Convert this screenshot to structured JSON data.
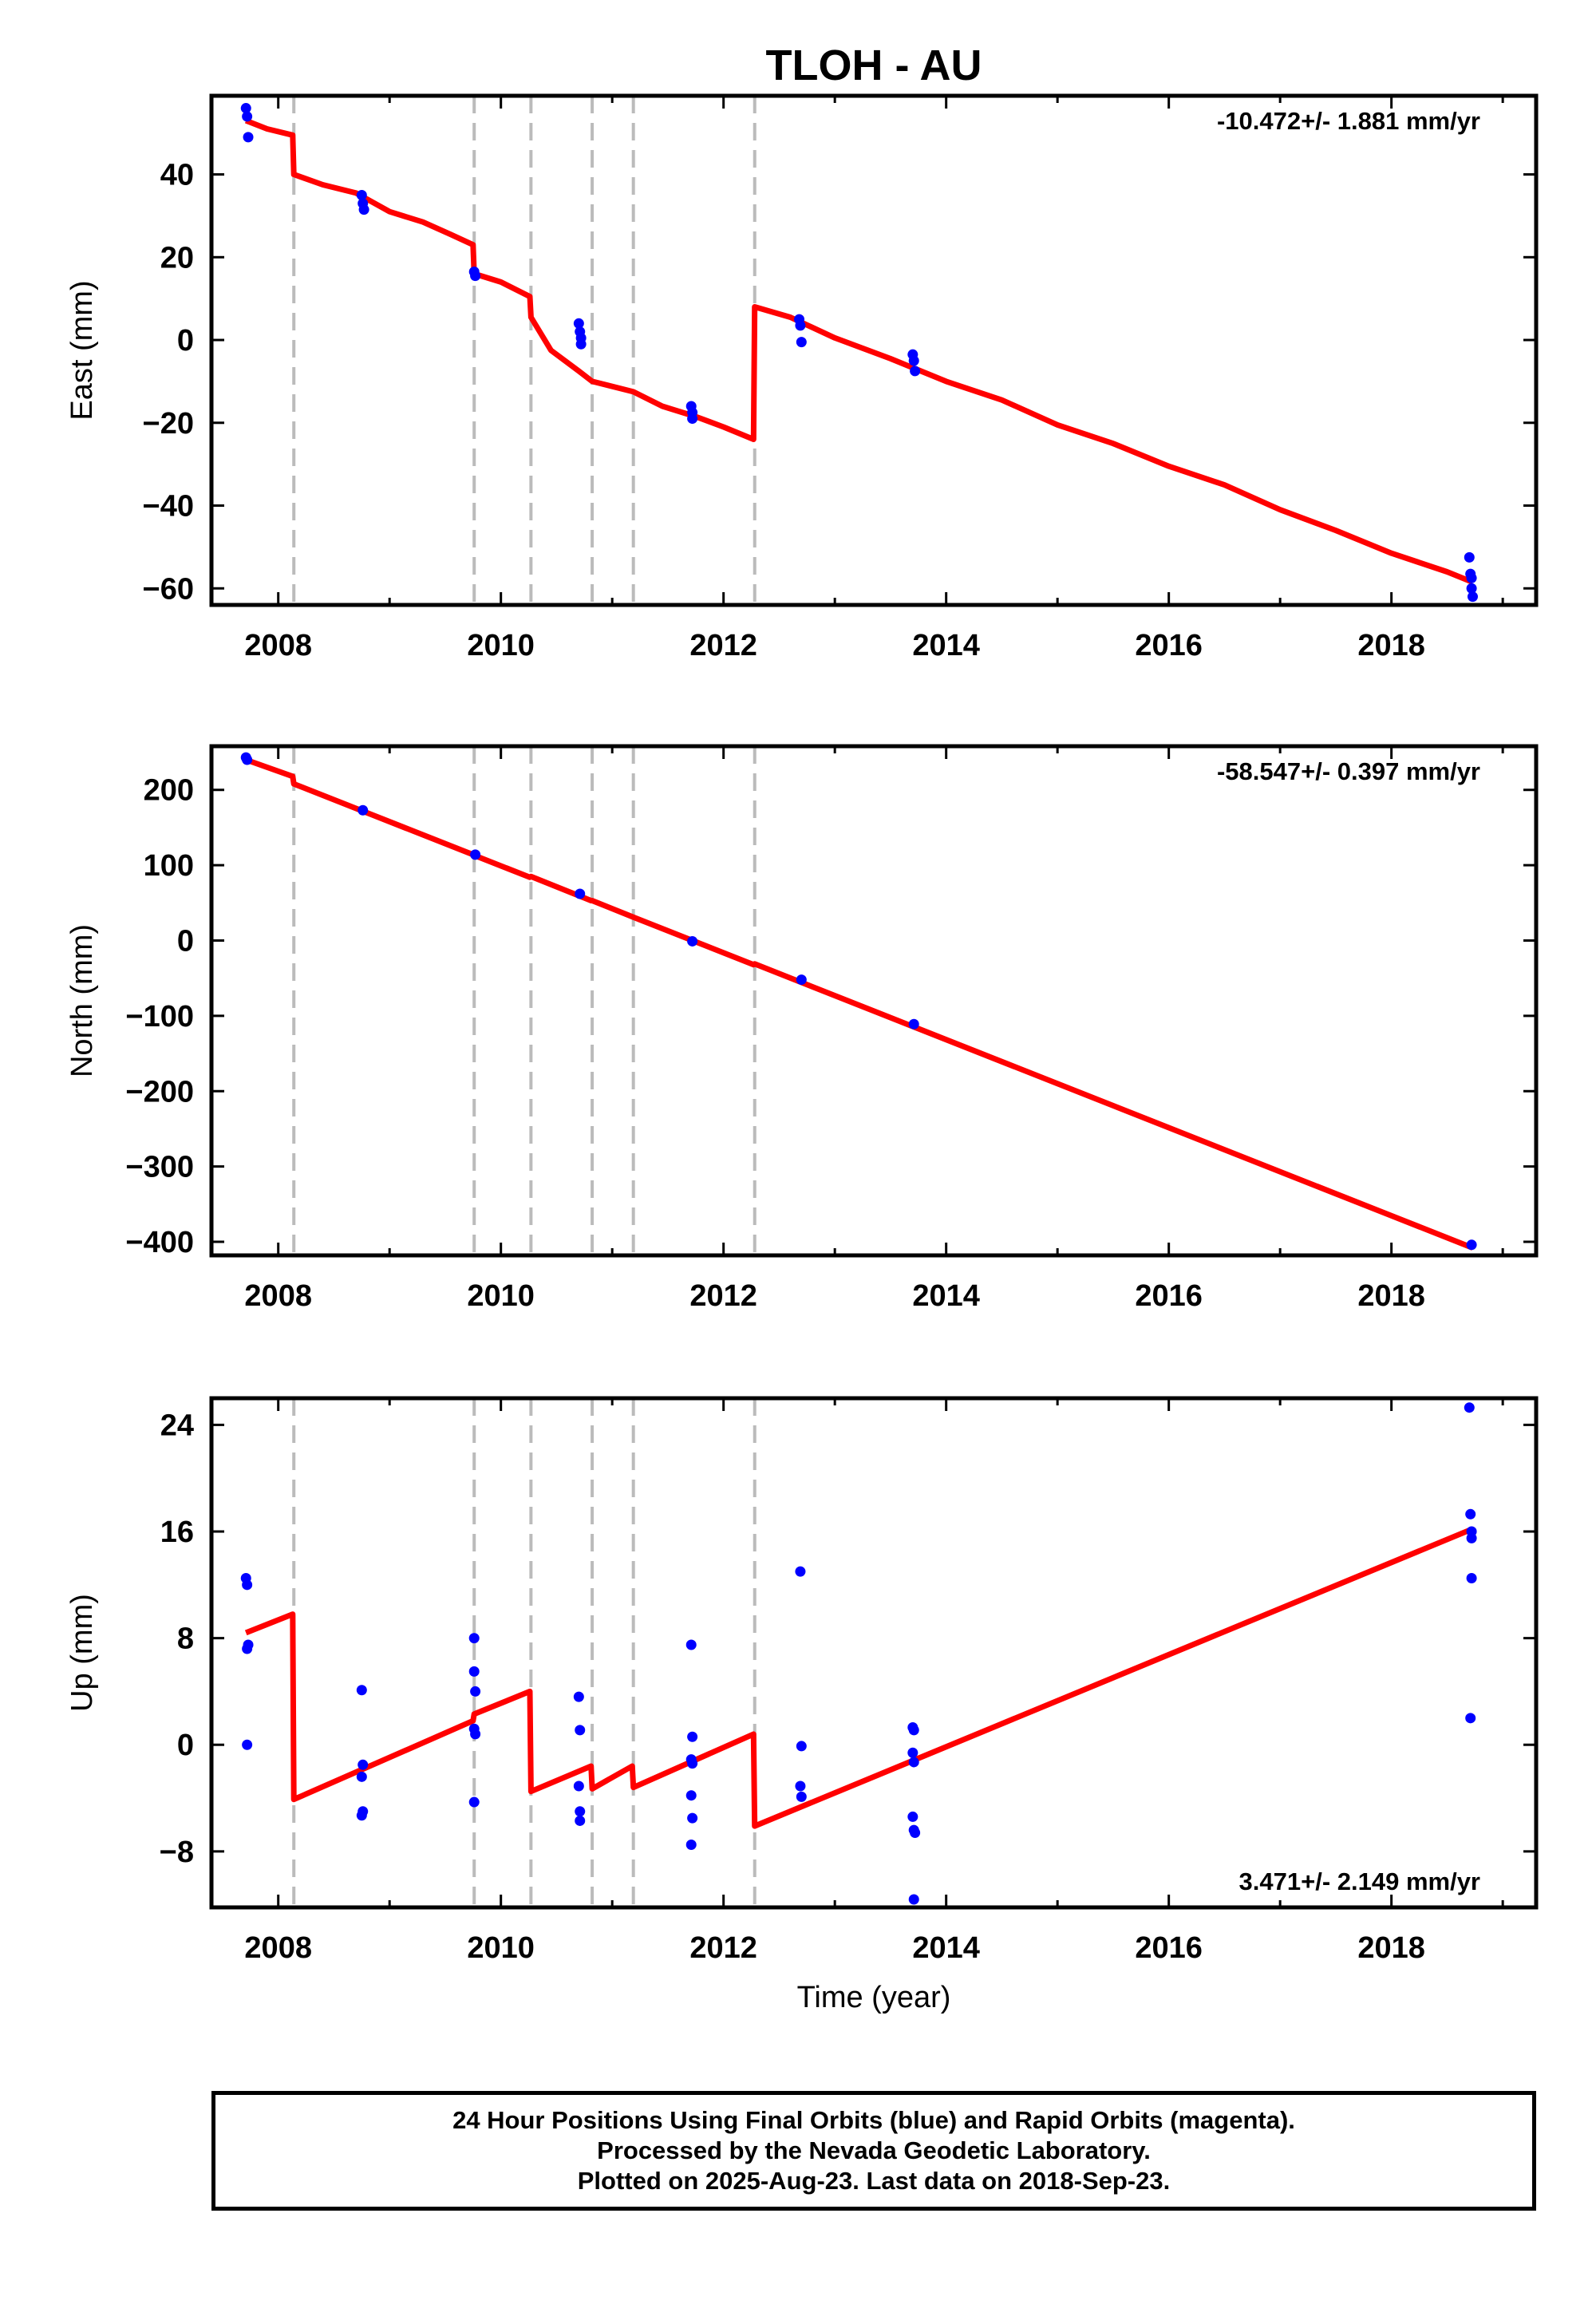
{
  "title": "TLOH - AU",
  "colors": {
    "model": "#ff0000",
    "final_points": "#0000ff",
    "offsets": "#bbbbbb",
    "axes": "#000000"
  },
  "chart_data": [
    {
      "type": "scatter",
      "component": "east",
      "ylabel": "East (mm)",
      "xlabel": "",
      "rate_text": "-10.472+/- 1.881 mm/yr",
      "rate_position": "top-right",
      "xlim": [
        2007.4,
        2019.3
      ],
      "ylim": [
        -64,
        59
      ],
      "x_ticks": [
        2008,
        2010,
        2012,
        2014,
        2016,
        2018
      ],
      "y_ticks": [
        40,
        20,
        0,
        -20,
        -40,
        -60
      ],
      "y_tick_labels": [
        "40",
        "20",
        "0",
        "−20",
        "−40",
        "−60"
      ],
      "offset_epochs": [
        2008.14,
        2009.76,
        2010.27,
        2010.82,
        2011.19,
        2012.28
      ],
      "points": [
        [
          2007.71,
          56
        ],
        [
          2007.72,
          54
        ],
        [
          2007.73,
          49
        ],
        [
          2008.75,
          35
        ],
        [
          2008.76,
          33
        ],
        [
          2008.77,
          31.5
        ],
        [
          2009.76,
          16.5
        ],
        [
          2009.77,
          15.5
        ],
        [
          2010.7,
          4
        ],
        [
          2010.71,
          2
        ],
        [
          2010.72,
          0.5
        ],
        [
          2010.72,
          -1
        ],
        [
          2011.71,
          -16
        ],
        [
          2011.72,
          -17.5
        ],
        [
          2011.72,
          -19
        ],
        [
          2012.68,
          5
        ],
        [
          2012.69,
          3.5
        ],
        [
          2012.7,
          -0.5
        ],
        [
          2013.7,
          -3.5
        ],
        [
          2013.71,
          -5
        ],
        [
          2013.72,
          -7.5
        ],
        [
          2018.7,
          -52.5
        ],
        [
          2018.71,
          -56.5
        ],
        [
          2018.72,
          -57.5
        ],
        [
          2018.72,
          -60
        ],
        [
          2018.73,
          -62
        ]
      ],
      "model": [
        [
          2007.71,
          53
        ],
        [
          2007.9,
          51
        ],
        [
          2008.13,
          49.5
        ],
        [
          2008.14,
          40
        ],
        [
          2008.4,
          37.5
        ],
        [
          2008.7,
          35.5
        ],
        [
          2009.0,
          31
        ],
        [
          2009.3,
          28.5
        ],
        [
          2009.55,
          25.5
        ],
        [
          2009.75,
          23
        ],
        [
          2009.76,
          16
        ],
        [
          2010.0,
          14
        ],
        [
          2010.26,
          10.5
        ],
        [
          2010.27,
          5.5
        ],
        [
          2010.45,
          -2.5
        ],
        [
          2010.7,
          -7.5
        ],
        [
          2010.82,
          -10
        ],
        [
          2011.19,
          -12.5
        ],
        [
          2011.45,
          -16
        ],
        [
          2011.75,
          -18.5
        ],
        [
          2012.0,
          -21
        ],
        [
          2012.27,
          -24
        ],
        [
          2012.28,
          8
        ],
        [
          2012.6,
          5.5
        ],
        [
          2013.0,
          0.5
        ],
        [
          2013.5,
          -4.5
        ],
        [
          2014.0,
          -10
        ],
        [
          2014.5,
          -14.5
        ],
        [
          2015.0,
          -20.5
        ],
        [
          2015.5,
          -25
        ],
        [
          2016.0,
          -30.5
        ],
        [
          2016.5,
          -35
        ],
        [
          2017.0,
          -41
        ],
        [
          2017.5,
          -46
        ],
        [
          2018.0,
          -51.5
        ],
        [
          2018.5,
          -56
        ],
        [
          2018.73,
          -58.5
        ]
      ]
    },
    {
      "type": "scatter",
      "component": "north",
      "ylabel": "North (mm)",
      "xlabel": "",
      "rate_text": "-58.547+/- 0.397 mm/yr",
      "rate_position": "top-right",
      "xlim": [
        2007.4,
        2019.3
      ],
      "ylim": [
        -418,
        258
      ],
      "x_ticks": [
        2008,
        2010,
        2012,
        2014,
        2016,
        2018
      ],
      "y_ticks": [
        200,
        100,
        0,
        -100,
        -200,
        -300,
        -400
      ],
      "y_tick_labels": [
        "200",
        "100",
        "0",
        "−100",
        "−200",
        "−300",
        "−400"
      ],
      "offset_epochs": [
        2008.14,
        2009.76,
        2010.27,
        2010.82,
        2011.19,
        2012.28
      ],
      "points": [
        [
          2007.71,
          243
        ],
        [
          2007.72,
          240
        ],
        [
          2008.76,
          173
        ],
        [
          2009.77,
          114
        ],
        [
          2010.71,
          62
        ],
        [
          2011.72,
          -1
        ],
        [
          2012.7,
          -52
        ],
        [
          2013.71,
          -111
        ],
        [
          2018.72,
          -404
        ]
      ],
      "model": [
        [
          2007.71,
          240
        ],
        [
          2008.13,
          218
        ],
        [
          2008.14,
          208
        ],
        [
          2009.75,
          114
        ],
        [
          2009.76,
          113
        ],
        [
          2010.26,
          84
        ],
        [
          2010.27,
          85
        ],
        [
          2010.81,
          53
        ],
        [
          2010.82,
          53
        ],
        [
          2011.19,
          31
        ],
        [
          2012.27,
          -32
        ],
        [
          2012.28,
          -31
        ],
        [
          2018.73,
          -408
        ]
      ]
    },
    {
      "type": "scatter",
      "component": "up",
      "ylabel": "Up (mm)",
      "xlabel": "Time (year)",
      "rate_text": "3.471+/- 2.149 mm/yr",
      "rate_position": "bottom-right",
      "xlim": [
        2007.4,
        2019.3
      ],
      "ylim": [
        -12.2,
        26
      ],
      "x_ticks": [
        2008,
        2010,
        2012,
        2014,
        2016,
        2018
      ],
      "y_ticks": [
        24,
        16,
        8,
        0,
        -8
      ],
      "y_tick_labels": [
        "24",
        "16",
        "8",
        "0",
        "−8"
      ],
      "offset_epochs": [
        2008.14,
        2009.76,
        2010.27,
        2010.82,
        2011.19,
        2012.28
      ],
      "points": [
        [
          2007.71,
          12.5
        ],
        [
          2007.72,
          12
        ],
        [
          2007.73,
          7.5
        ],
        [
          2007.72,
          7.2
        ],
        [
          2007.72,
          0
        ],
        [
          2008.75,
          4.1
        ],
        [
          2008.76,
          -1.5
        ],
        [
          2008.75,
          -2.4
        ],
        [
          2008.76,
          -5
        ],
        [
          2008.75,
          -5.3
        ],
        [
          2009.76,
          8
        ],
        [
          2009.76,
          5.5
        ],
        [
          2009.77,
          4
        ],
        [
          2009.76,
          1.2
        ],
        [
          2009.77,
          0.8
        ],
        [
          2009.76,
          -4.3
        ],
        [
          2010.7,
          3.6
        ],
        [
          2010.71,
          1.1
        ],
        [
          2010.7,
          -3.1
        ],
        [
          2010.71,
          -5
        ],
        [
          2010.71,
          -5.7
        ],
        [
          2011.71,
          7.5
        ],
        [
          2011.72,
          0.6
        ],
        [
          2011.71,
          -1.1
        ],
        [
          2011.72,
          -1.4
        ],
        [
          2011.71,
          -3.8
        ],
        [
          2011.72,
          -5.5
        ],
        [
          2011.71,
          -7.5
        ],
        [
          2012.69,
          13
        ],
        [
          2012.7,
          -0.1
        ],
        [
          2012.69,
          -3.1
        ],
        [
          2012.7,
          -3.9
        ],
        [
          2013.7,
          1.3
        ],
        [
          2013.71,
          1.1
        ],
        [
          2013.7,
          -0.6
        ],
        [
          2013.71,
          -1.3
        ],
        [
          2013.7,
          -5.4
        ],
        [
          2013.71,
          -6.4
        ],
        [
          2013.72,
          -6.6
        ],
        [
          2013.71,
          -11.6
        ],
        [
          2018.7,
          25.3
        ],
        [
          2018.71,
          17.3
        ],
        [
          2018.72,
          16
        ],
        [
          2018.72,
          15.5
        ],
        [
          2018.72,
          12.5
        ],
        [
          2018.71,
          2
        ]
      ],
      "model": [
        [
          2007.71,
          8.4
        ],
        [
          2008.13,
          9.8
        ],
        [
          2008.14,
          -4.1
        ],
        [
          2009.75,
          1.8
        ],
        [
          2009.76,
          2.3
        ],
        [
          2010.26,
          4
        ],
        [
          2010.27,
          -3.5
        ],
        [
          2010.81,
          -1.6
        ],
        [
          2010.82,
          -3.3
        ],
        [
          2011.18,
          -1.6
        ],
        [
          2011.19,
          -3.2
        ],
        [
          2012.27,
          0.8
        ],
        [
          2012.28,
          -6.1
        ],
        [
          2018.73,
          16.2
        ]
      ]
    }
  ],
  "footer": {
    "line1": "24 Hour Positions Using Final Orbits (blue) and Rapid Orbits (magenta).",
    "line2": "Processed by the Nevada Geodetic Laboratory.",
    "line3": "Plotted on 2025-Aug-23. Last data on 2018-Sep-23."
  }
}
